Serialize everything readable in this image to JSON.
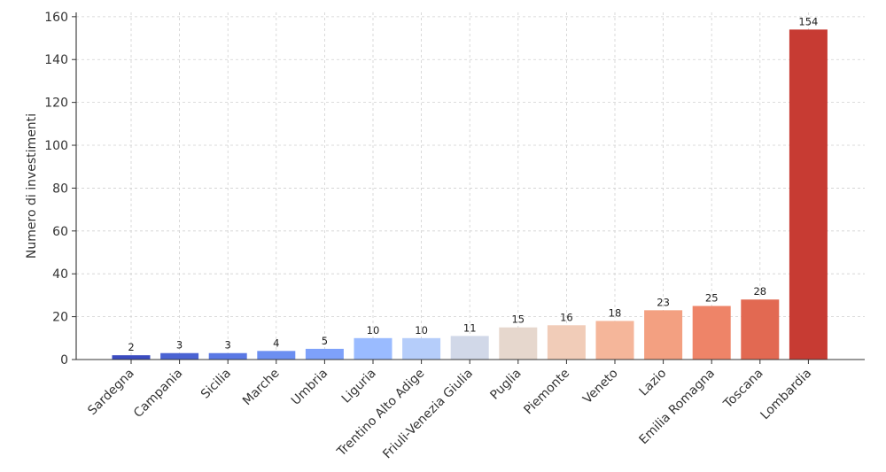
{
  "chart_data": {
    "type": "bar",
    "title": "",
    "xlabel": "",
    "ylabel": "Numero di investimenti",
    "ylim": [
      0,
      162
    ],
    "yticks": [
      0,
      20,
      40,
      60,
      80,
      100,
      120,
      140,
      160
    ],
    "grid": true,
    "categories": [
      "Sardegna",
      "Campania",
      "Sicilia",
      "Marche",
      "Umbria",
      "Liguria",
      "Trentino Alto Adige",
      "Friuli-Venezia Giulia",
      "Puglia",
      "Piemonte",
      "Veneto",
      "Lazio",
      "Emilia Romagna",
      "Toscana",
      "Lombardia"
    ],
    "values": [
      2,
      3,
      3,
      4,
      5,
      10,
      10,
      11,
      15,
      16,
      18,
      23,
      25,
      28,
      154
    ],
    "colors": [
      "#3b4cc0",
      "#4a63d3",
      "#5a78e4",
      "#6c8ff1",
      "#7ea1fa",
      "#9abbff",
      "#b5cdfa",
      "#d1d8e8",
      "#e6d7cd",
      "#f1ccb8",
      "#f5b69a",
      "#f3a081",
      "#ee8468",
      "#e26952",
      "#c73b33"
    ]
  }
}
